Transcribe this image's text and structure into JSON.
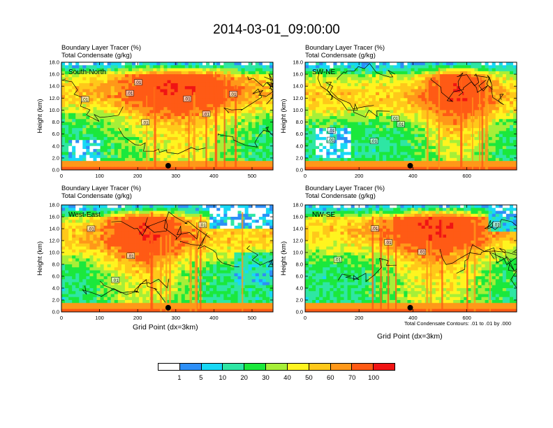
{
  "title": "2014-03-01_09:00:00",
  "panel_title_1": "Boundary Layer Tracer   (%)",
  "panel_title_2": "Total Condensate   (g/kg)",
  "ylabel": "Height (km)",
  "xlabel": "Grid Point (dx=3km)",
  "contour_note": "Total Condensate Contours: .01 to .01 by .000",
  "colorbar": {
    "colors": [
      "#ffffff",
      "#2d8ff7",
      "#18d8f5",
      "#2ee6a4",
      "#1be83c",
      "#a6ef38",
      "#fff41f",
      "#ffc81a",
      "#ff9819",
      "#ff5a15",
      "#f01414"
    ],
    "labels": [
      "1",
      "5",
      "10",
      "20",
      "30",
      "40",
      "50",
      "60",
      "70",
      "100"
    ]
  },
  "chart_data": [
    {
      "type": "heatmap",
      "name": "South-North",
      "title": "Boundary Layer Tracer (%) / Total Condensate (g/kg)",
      "xlabel": "",
      "ylabel": "Height (km)",
      "xlim": [
        0,
        555
      ],
      "ylim": [
        0,
        18
      ],
      "xticks": [
        0,
        100,
        200,
        300,
        400,
        500
      ],
      "yticks": [
        0.0,
        2.0,
        4.0,
        6.0,
        8.0,
        10.0,
        12.0,
        14.0,
        16.0,
        18.0
      ],
      "marker_x": 280,
      "contour_labels": [
        ".01",
        ".01",
        ".01",
        ".01",
        ".01",
        ".01",
        ".01"
      ]
    },
    {
      "type": "heatmap",
      "name": "SW-NE",
      "title": "Boundary Layer Tracer (%) / Total Condensate (g/kg)",
      "xlabel": "",
      "ylabel": "Height (km)",
      "xlim": [
        0,
        785
      ],
      "ylim": [
        0,
        18
      ],
      "xticks": [
        0,
        200,
        400,
        600
      ],
      "yticks": [
        0.0,
        2.0,
        4.0,
        6.0,
        8.0,
        10.0,
        12.0,
        14.0,
        16.0,
        18.0
      ],
      "marker_x": 390,
      "contour_labels": [
        ".01",
        ".01",
        ".01",
        ".01",
        ".01"
      ]
    },
    {
      "type": "heatmap",
      "name": "West-East",
      "title": "Boundary Layer Tracer (%) / Total Condensate (g/kg)",
      "xlabel": "Grid Point (dx=3km)",
      "ylabel": "Height (km)",
      "xlim": [
        0,
        555
      ],
      "ylim": [
        0,
        18
      ],
      "xticks": [
        0,
        100,
        200,
        300,
        400,
        500
      ],
      "yticks": [
        0.0,
        2.0,
        4.0,
        6.0,
        8.0,
        10.0,
        12.0,
        14.0,
        16.0,
        18.0
      ],
      "marker_x": 280,
      "contour_labels": [
        ".01",
        ".01",
        ".01",
        ".01"
      ]
    },
    {
      "type": "heatmap",
      "name": "NW-SE",
      "title": "Boundary Layer Tracer (%) / Total Condensate (g/kg)",
      "xlabel": "Grid Point (dx=3km)",
      "ylabel": "Height (km)",
      "xlim": [
        0,
        785
      ],
      "ylim": [
        0,
        18
      ],
      "xticks": [
        0,
        200,
        400,
        600
      ],
      "yticks": [
        0.0,
        2.0,
        4.0,
        6.0,
        8.0,
        10.0,
        12.0,
        14.0,
        16.0,
        18.0
      ],
      "marker_x": 390,
      "contour_labels": [
        ".01",
        ".01",
        ".01",
        ".01",
        ".01"
      ]
    }
  ]
}
